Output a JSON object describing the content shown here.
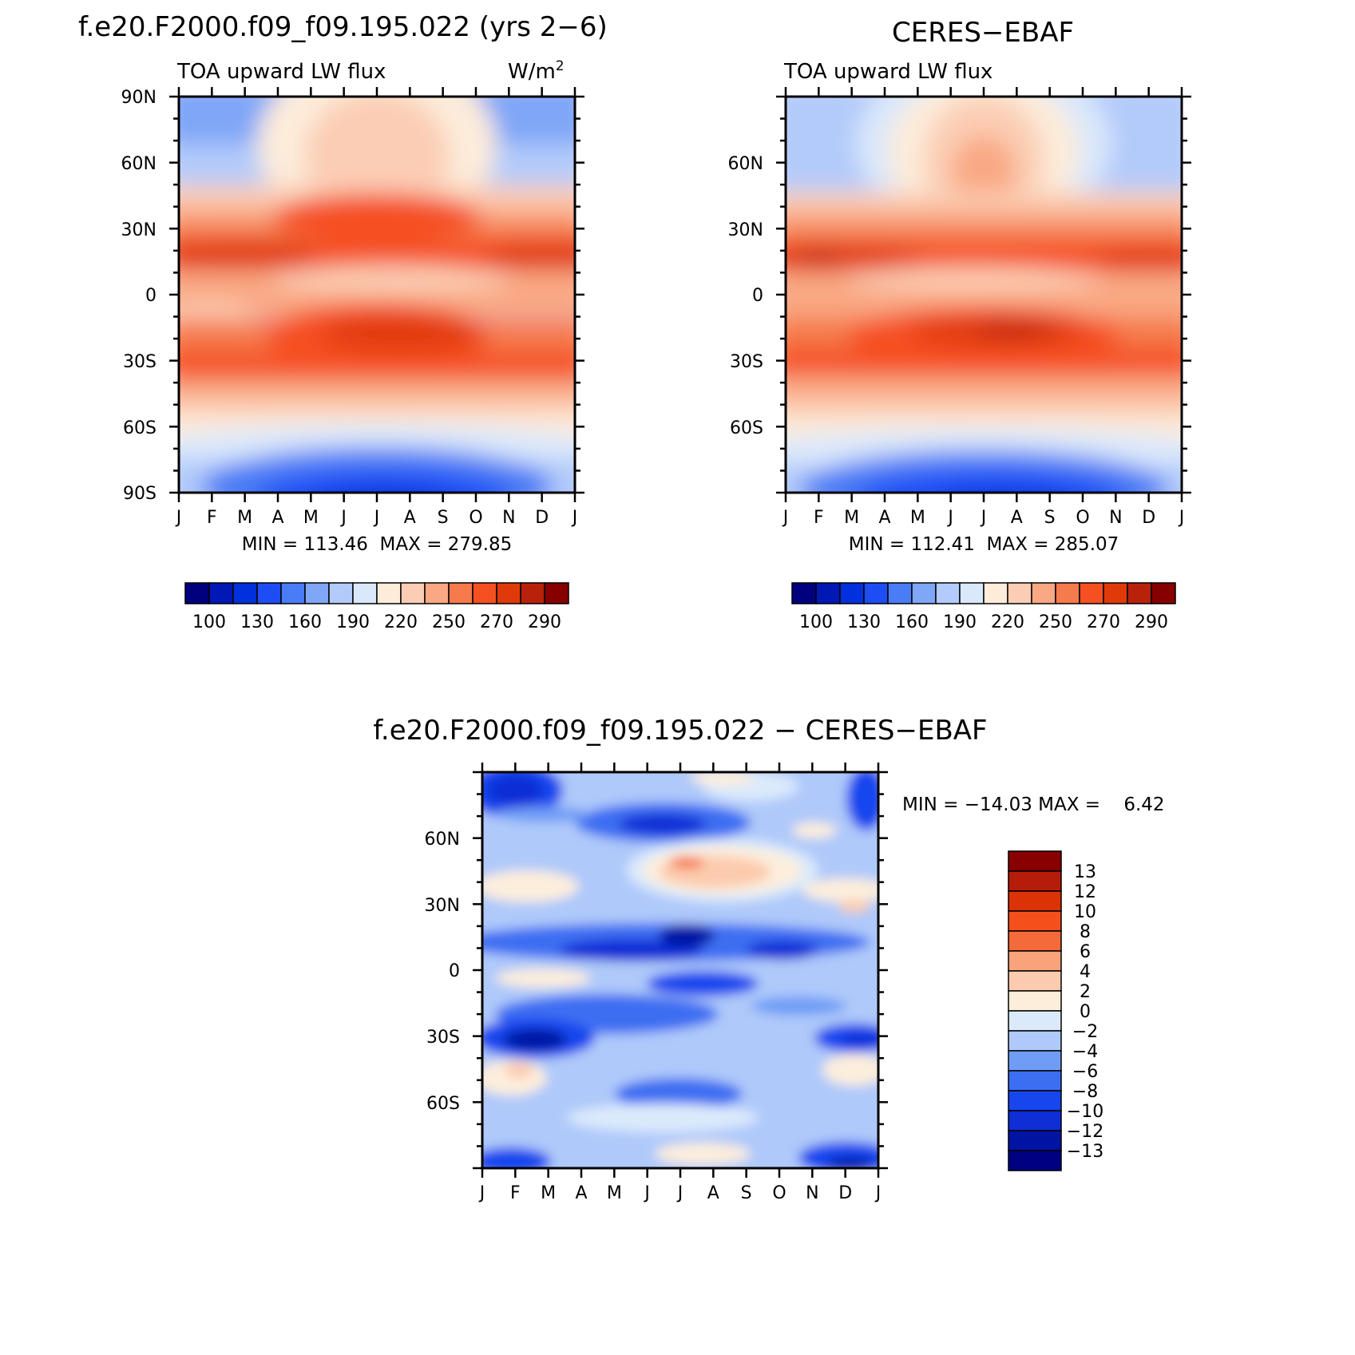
{
  "chart_data": [
    {
      "type": "heatmap",
      "title": "f.e20.F2000.f09_f09.195.022 (yrs 2−6)",
      "subtitle_left": "TOA upward LW flux",
      "subtitle_right": "W/m²",
      "x_tick_labels": [
        "J",
        "F",
        "M",
        "A",
        "M",
        "J",
        "J",
        "A",
        "S",
        "O",
        "N",
        "D",
        "J"
      ],
      "y_tick_labels": [
        "90N",
        "60N",
        "30N",
        "0",
        "30S",
        "60S",
        "90S"
      ],
      "y_range": [
        -90,
        90
      ],
      "stats": "MIN = 113.46  MAX = 279.85",
      "min": 113.46,
      "max": 279.85,
      "colorbar_labels": [
        "100",
        "130",
        "160",
        "190",
        "220",
        "250",
        "270",
        "290"
      ],
      "colorbar_orientation": "horizontal"
    },
    {
      "type": "heatmap",
      "title": "CERES−EBAF",
      "subtitle_left": "TOA upward LW flux",
      "x_tick_labels": [
        "J",
        "F",
        "M",
        "A",
        "M",
        "J",
        "J",
        "A",
        "S",
        "O",
        "N",
        "D",
        "J"
      ],
      "y_tick_labels": [
        "60N",
        "30N",
        "0",
        "30S",
        "60S"
      ],
      "y_range": [
        -90,
        90
      ],
      "stats": "MIN = 112.41  MAX = 285.07",
      "min": 112.41,
      "max": 285.07,
      "colorbar_labels": [
        "100",
        "130",
        "160",
        "190",
        "220",
        "250",
        "270",
        "290"
      ],
      "colorbar_orientation": "horizontal"
    },
    {
      "type": "heatmap",
      "title": "f.e20.F2000.f09_f09.195.022 − CERES−EBAF",
      "x_tick_labels": [
        "J",
        "F",
        "M",
        "A",
        "M",
        "J",
        "J",
        "A",
        "S",
        "O",
        "N",
        "D",
        "J"
      ],
      "y_tick_labels": [
        "60N",
        "30N",
        "0",
        "30S",
        "60S"
      ],
      "y_range": [
        -90,
        90
      ],
      "stats": "MIN = −14.03 MAX =    6.42",
      "min": -14.03,
      "max": 6.42,
      "colorbar_labels": [
        "13",
        "12",
        "10",
        "8",
        "6",
        "4",
        "2",
        "0",
        "−2",
        "−4",
        "−6",
        "−8",
        "−10",
        "−12",
        "−13"
      ],
      "colorbar_orientation": "vertical"
    }
  ],
  "colors": {
    "flux_scale": [
      "#00007f",
      "#0018b4",
      "#0031dc",
      "#1e4cf5",
      "#4a7cf5",
      "#7fa6f7",
      "#b3cbfa",
      "#dae8fb",
      "#fdecda",
      "#fbcdb4",
      "#f9a883",
      "#f57a4c",
      "#f55022",
      "#e13a0a",
      "#b8220b",
      "#870000"
    ],
    "diff_scale": [
      "#000082",
      "#0014a3",
      "#0f2ed6",
      "#1846ee",
      "#3c6ef2",
      "#6f9df6",
      "#afc9fa",
      "#dbeafb",
      "#fdeedc",
      "#fccbad",
      "#faa37b",
      "#f56a3b",
      "#f5501c",
      "#dc3306",
      "#b51c0a",
      "#880000"
    ]
  }
}
